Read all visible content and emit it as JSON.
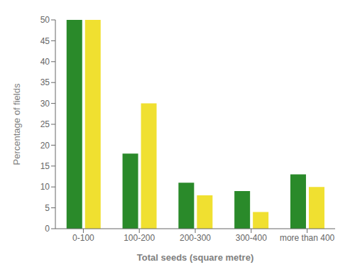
{
  "chart_data": {
    "type": "bar",
    "categories": [
      "0-100",
      "100-200",
      "200-300",
      "300-400",
      "more than 400"
    ],
    "series": [
      {
        "color": "#2a8a2a",
        "values": [
          50,
          18,
          11,
          9,
          13
        ]
      },
      {
        "color": "#f0e030",
        "values": [
          50,
          30,
          8,
          4,
          10
        ]
      }
    ],
    "xlabel": "Total seeds (square metre)",
    "ylabel": "Percentage of fields",
    "ylim": [
      0,
      50
    ],
    "yticks": [
      0,
      5,
      10,
      15,
      20,
      25,
      30,
      35,
      40,
      45,
      50
    ],
    "grid": false
  }
}
